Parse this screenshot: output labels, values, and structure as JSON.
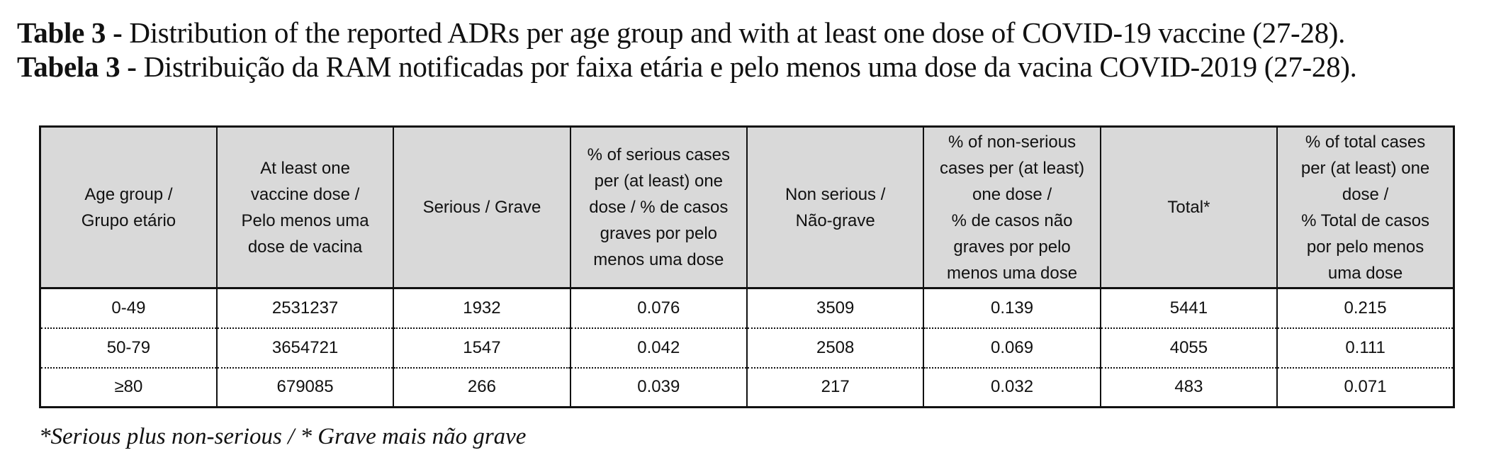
{
  "title_en": {
    "label": "Table 3 -",
    "text": " Distribution of the reported ADRs per age group and with at least one dose of COVID-19 vaccine (27-28)."
  },
  "title_pt": {
    "label": "Tabela 3 -",
    "text": " Distribuição da RAM notificadas por faixa etária e pelo menos uma dose da vacina COVID-2019 (27-28)."
  },
  "table": {
    "headers": [
      [
        "Age group /",
        "Grupo etário"
      ],
      [
        "At least one",
        "vaccine dose /",
        "Pelo menos uma",
        "dose de vacina"
      ],
      [
        "Serious / Grave"
      ],
      [
        "% of serious cases",
        "per (at least) one",
        "dose / % de casos",
        "graves por pelo",
        "menos uma dose"
      ],
      [
        "Non serious /",
        "Não-grave"
      ],
      [
        "% of non-serious",
        "cases per (at least)",
        "one dose /",
        "% de casos não",
        "graves por pelo",
        "menos uma dose"
      ],
      [
        "Total*"
      ],
      [
        "% of  total cases",
        "per (at least) one",
        "dose /",
        "% Total de casos",
        "por pelo menos",
        "uma dose"
      ]
    ],
    "rows": [
      [
        "0-49",
        "2531237",
        "1932",
        "0.076",
        "3509",
        "0.139",
        "5441",
        "0.215"
      ],
      [
        "50-79",
        "3654721",
        "1547",
        "0.042",
        "2508",
        "0.069",
        "4055",
        "0.111"
      ],
      [
        "≥80",
        "679085",
        "266",
        "0.039",
        "217",
        "0.032",
        "483",
        "0.071"
      ]
    ]
  },
  "footnote": "*Serious plus non-serious / * Grave mais não grave"
}
